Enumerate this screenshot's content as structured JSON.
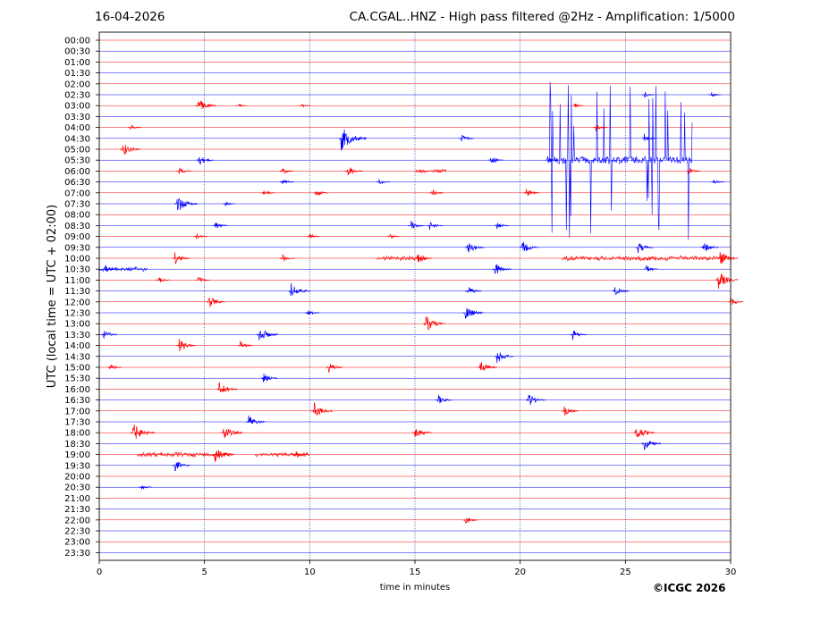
{
  "header": {
    "date": "16-04-2026",
    "station_title": "CA.CGAL..HNZ - High pass filtered @2Hz - Amplification: 1/5000"
  },
  "footer": {
    "copyright": "©ICGC 2026"
  },
  "colors": {
    "red_trace": "#ff0000",
    "blue_trace": "#0000ff",
    "grid": "#000080",
    "axes": "#000000"
  },
  "chart_data": {
    "type": "line",
    "title": "CA.CGAL..HNZ - High pass filtered @2Hz - Amplification: 1/5000",
    "xlabel": "time in minutes",
    "ylabel": "UTC (local time = UTC + 02:00)",
    "xlim": [
      0,
      30
    ],
    "xticks": [
      0,
      5,
      10,
      15,
      20,
      25,
      30
    ],
    "vertical_gridlines_at": [
      5,
      10,
      15,
      20,
      25
    ],
    "row_labels": [
      "00:00",
      "00:30",
      "01:00",
      "01:30",
      "02:00",
      "02:30",
      "03:00",
      "03:30",
      "04:00",
      "04:30",
      "05:00",
      "05:30",
      "06:00",
      "06:30",
      "07:00",
      "07:30",
      "08:00",
      "08:30",
      "09:00",
      "09:30",
      "10:00",
      "10:30",
      "11:00",
      "11:30",
      "12:00",
      "12:30",
      "13:00",
      "13:30",
      "14:00",
      "14:30",
      "15:00",
      "15:30",
      "16:00",
      "16:30",
      "17:00",
      "17:30",
      "18:00",
      "18:30",
      "19:00",
      "19:30",
      "20:00",
      "20:30",
      "21:00",
      "21:30",
      "22:00",
      "22:30",
      "23:00",
      "23:30"
    ],
    "events": [
      {
        "row": "02:30",
        "minute": 25.9,
        "amplitude": 0.4
      },
      {
        "row": "02:30",
        "minute": 29.1,
        "amplitude": 0.3
      },
      {
        "row": "03:00",
        "minute": 4.7,
        "amplitude": 1.0
      },
      {
        "row": "03:00",
        "minute": 6.6,
        "amplitude": 0.3
      },
      {
        "row": "03:00",
        "minute": 9.6,
        "amplitude": 0.3
      },
      {
        "row": "03:00",
        "minute": 22.6,
        "amplitude": 0.3
      },
      {
        "row": "04:00",
        "minute": 1.5,
        "amplitude": 0.4
      },
      {
        "row": "04:00",
        "minute": 23.6,
        "amplitude": 0.5
      },
      {
        "row": "04:30",
        "minute": 11.5,
        "amplitude": 1.6
      },
      {
        "row": "04:30",
        "minute": 17.2,
        "amplitude": 0.6
      },
      {
        "row": "04:30",
        "minute": 25.9,
        "amplitude": 0.6
      },
      {
        "row": "05:00",
        "minute": 1.1,
        "amplitude": 1.0
      },
      {
        "row": "05:30",
        "minute": 4.7,
        "amplitude": 0.8
      },
      {
        "row": "05:30",
        "minute": 18.6,
        "amplitude": 0.6
      },
      {
        "row": "05:30",
        "minute": 21.3,
        "amplitude": 0.5
      },
      {
        "row": "06:00",
        "minute": 3.8,
        "amplitude": 0.5
      },
      {
        "row": "06:00",
        "minute": 8.7,
        "amplitude": 0.5
      },
      {
        "row": "06:00",
        "minute": 11.8,
        "amplitude": 0.8
      },
      {
        "row": "06:00",
        "minute": 28.0,
        "amplitude": 0.5
      },
      {
        "row": "06:30",
        "minute": 8.7,
        "amplitude": 0.5
      },
      {
        "row": "06:30",
        "minute": 13.3,
        "amplitude": 0.4
      },
      {
        "row": "06:30",
        "minute": 29.2,
        "amplitude": 0.4
      },
      {
        "row": "07:00",
        "minute": 7.8,
        "amplitude": 0.5
      },
      {
        "row": "07:00",
        "minute": 10.3,
        "amplitude": 0.6
      },
      {
        "row": "07:00",
        "minute": 15.8,
        "amplitude": 0.5
      },
      {
        "row": "07:00",
        "minute": 20.3,
        "amplitude": 0.6
      },
      {
        "row": "07:30",
        "minute": 3.7,
        "amplitude": 1.2
      },
      {
        "row": "07:30",
        "minute": 6.0,
        "amplitude": 0.3
      },
      {
        "row": "08:30",
        "minute": 5.5,
        "amplitude": 0.6
      },
      {
        "row": "08:30",
        "minute": 14.8,
        "amplitude": 0.7
      },
      {
        "row": "08:30",
        "minute": 15.7,
        "amplitude": 0.6
      },
      {
        "row": "08:30",
        "minute": 18.9,
        "amplitude": 0.5
      },
      {
        "row": "09:00",
        "minute": 4.6,
        "amplitude": 0.5
      },
      {
        "row": "09:00",
        "minute": 10.0,
        "amplitude": 0.4
      },
      {
        "row": "09:00",
        "minute": 13.8,
        "amplitude": 0.4
      },
      {
        "row": "09:30",
        "minute": 17.5,
        "amplitude": 0.9
      },
      {
        "row": "09:30",
        "minute": 20.1,
        "amplitude": 0.9
      },
      {
        "row": "09:30",
        "minute": 25.6,
        "amplitude": 0.8
      },
      {
        "row": "09:30",
        "minute": 28.7,
        "amplitude": 0.8
      },
      {
        "row": "10:00",
        "minute": 3.6,
        "amplitude": 0.8
      },
      {
        "row": "10:00",
        "minute": 8.7,
        "amplitude": 0.6
      },
      {
        "row": "10:00",
        "minute": 15.1,
        "amplitude": 0.8
      },
      {
        "row": "10:00",
        "minute": 29.5,
        "amplitude": 1.0
      },
      {
        "row": "10:30",
        "minute": 0.3,
        "amplitude": 0.5
      },
      {
        "row": "10:30",
        "minute": 18.8,
        "amplitude": 0.9
      },
      {
        "row": "10:30",
        "minute": 26.0,
        "amplitude": 0.5
      },
      {
        "row": "11:00",
        "minute": 2.8,
        "amplitude": 0.5
      },
      {
        "row": "11:00",
        "minute": 4.7,
        "amplitude": 0.5
      },
      {
        "row": "11:00",
        "minute": 29.4,
        "amplitude": 1.2
      },
      {
        "row": "11:30",
        "minute": 9.1,
        "amplitude": 1.1
      },
      {
        "row": "11:30",
        "minute": 17.5,
        "amplitude": 0.7
      },
      {
        "row": "11:30",
        "minute": 24.5,
        "amplitude": 0.7
      },
      {
        "row": "12:00",
        "minute": 5.2,
        "amplitude": 0.9
      },
      {
        "row": "12:00",
        "minute": 30.0,
        "amplitude": 0.6
      },
      {
        "row": "12:30",
        "minute": 9.9,
        "amplitude": 0.5
      },
      {
        "row": "12:30",
        "minute": 17.4,
        "amplitude": 1.0
      },
      {
        "row": "13:00",
        "minute": 15.5,
        "amplitude": 1.2
      },
      {
        "row": "13:30",
        "minute": 0.2,
        "amplitude": 0.7
      },
      {
        "row": "13:30",
        "minute": 7.6,
        "amplitude": 1.1
      },
      {
        "row": "13:30",
        "minute": 22.5,
        "amplitude": 0.7
      },
      {
        "row": "14:00",
        "minute": 3.8,
        "amplitude": 0.9
      },
      {
        "row": "14:00",
        "minute": 6.7,
        "amplitude": 0.6
      },
      {
        "row": "14:30",
        "minute": 18.9,
        "amplitude": 0.9
      },
      {
        "row": "15:00",
        "minute": 0.5,
        "amplitude": 0.5
      },
      {
        "row": "15:00",
        "minute": 10.9,
        "amplitude": 0.7
      },
      {
        "row": "15:00",
        "minute": 18.1,
        "amplitude": 0.9
      },
      {
        "row": "15:30",
        "minute": 7.8,
        "amplitude": 0.7
      },
      {
        "row": "16:00",
        "minute": 5.7,
        "amplitude": 1.0
      },
      {
        "row": "16:30",
        "minute": 16.1,
        "amplitude": 0.7
      },
      {
        "row": "16:30",
        "minute": 20.4,
        "amplitude": 0.9
      },
      {
        "row": "17:00",
        "minute": 10.2,
        "amplitude": 1.1
      },
      {
        "row": "17:00",
        "minute": 22.1,
        "amplitude": 0.7
      },
      {
        "row": "17:30",
        "minute": 7.1,
        "amplitude": 0.9
      },
      {
        "row": "18:00",
        "minute": 1.6,
        "amplitude": 1.3
      },
      {
        "row": "18:00",
        "minute": 5.9,
        "amplitude": 1.1
      },
      {
        "row": "18:00",
        "minute": 15.0,
        "amplitude": 0.9
      },
      {
        "row": "18:00",
        "minute": 25.5,
        "amplitude": 1.1
      },
      {
        "row": "18:30",
        "minute": 25.9,
        "amplitude": 0.9
      },
      {
        "row": "19:00",
        "minute": 5.5,
        "amplitude": 1.1
      },
      {
        "row": "19:00",
        "minute": 9.3,
        "amplitude": 0.6
      },
      {
        "row": "19:30",
        "minute": 3.6,
        "amplitude": 0.8
      },
      {
        "row": "20:30",
        "minute": 2.0,
        "amplitude": 0.4
      },
      {
        "row": "22:00",
        "minute": 17.4,
        "amplitude": 0.6
      }
    ],
    "long_bursts": [
      {
        "row": "06:00",
        "start_minute": 15.0,
        "end_minute": 16.5,
        "amplitude": 0.3
      },
      {
        "row": "10:00",
        "start_minute": 13.2,
        "end_minute": 15.5,
        "amplitude": 0.35
      },
      {
        "row": "10:00",
        "start_minute": 22.0,
        "end_minute": 29.8,
        "amplitude": 0.35
      },
      {
        "row": "10:30",
        "start_minute": 0.0,
        "end_minute": 2.3,
        "amplitude": 0.3
      },
      {
        "row": "19:00",
        "start_minute": 1.8,
        "end_minute": 6.2,
        "amplitude": 0.35
      },
      {
        "row": "19:00",
        "start_minute": 7.4,
        "end_minute": 10.0,
        "amplitude": 0.3
      }
    ],
    "spike_cluster": {
      "row": "05:30",
      "start_minute": 21.3,
      "end_minute": 28.2,
      "amplitude": 9.0
    }
  }
}
